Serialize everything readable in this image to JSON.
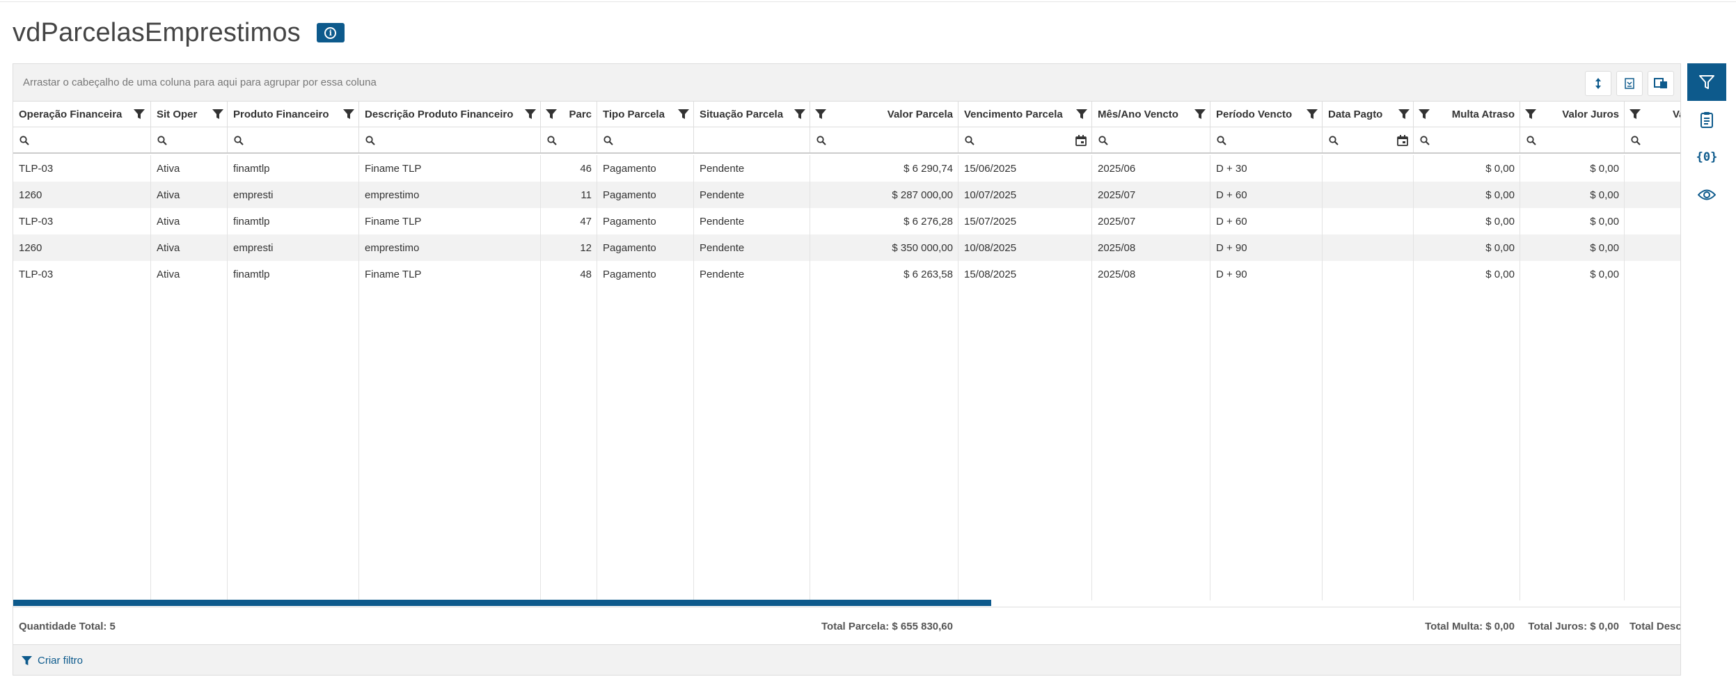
{
  "page": {
    "title": "vdParcelasEmprestimos",
    "info_icon": "info-icon"
  },
  "toolbar": {
    "group_hint": "Arrastar o cabeçalho de uma coluna para aqui para agrupar por essa coluna"
  },
  "columns": [
    "Operação Financeira",
    "Sit Oper",
    "Produto Financeiro",
    "Descrição Produto Financeiro",
    "Parc",
    "Tipo Parcela",
    "Situação Parcela",
    "Valor Parcela",
    "Vencimento Parcela",
    "Mês/Ano Vencto",
    "Período Vencto",
    "Data Pagto",
    "Multa Atraso",
    "Valor Juros",
    "Val"
  ],
  "rows": [
    [
      "TLP-03",
      "Ativa",
      "finamtlp",
      "Finame TLP",
      "46",
      "Pagamento",
      "Pendente",
      "$ 6 290,74",
      "15/06/2025",
      "2025/06",
      "D + 30",
      "",
      "$ 0,00",
      "$ 0,00"
    ],
    [
      "1260",
      "Ativa",
      "empresti",
      "emprestimo",
      "11",
      "Pagamento",
      "Pendente",
      "$ 287 000,00",
      "10/07/2025",
      "2025/07",
      "D + 60",
      "",
      "$ 0,00",
      "$ 0,00"
    ],
    [
      "TLP-03",
      "Ativa",
      "finamtlp",
      "Finame TLP",
      "47",
      "Pagamento",
      "Pendente",
      "$ 6 276,28",
      "15/07/2025",
      "2025/07",
      "D + 60",
      "",
      "$ 0,00",
      "$ 0,00"
    ],
    [
      "1260",
      "Ativa",
      "empresti",
      "emprestimo",
      "12",
      "Pagamento",
      "Pendente",
      "$ 350 000,00",
      "10/08/2025",
      "2025/08",
      "D + 90",
      "",
      "$ 0,00",
      "$ 0,00"
    ],
    [
      "TLP-03",
      "Ativa",
      "finamtlp",
      "Finame TLP",
      "48",
      "Pagamento",
      "Pendente",
      "$ 6 263,58",
      "15/08/2025",
      "2025/08",
      "D + 90",
      "",
      "$ 0,00",
      "$ 0,00"
    ]
  ],
  "footer": {
    "quantidade": "Quantidade Total: 5",
    "total_parcela": "Total Parcela: $ 655 830,60",
    "total_multa": "Total Multa: $ 0,00",
    "total_juros": "Total Juros: $ 0,00",
    "total_desc": "Total Desc"
  },
  "filter_bar": {
    "create_filter": "Criar filtro"
  },
  "colors": {
    "accent": "#0d5a8c",
    "alt_row": "#f2f2f2",
    "border": "#dddddd"
  }
}
